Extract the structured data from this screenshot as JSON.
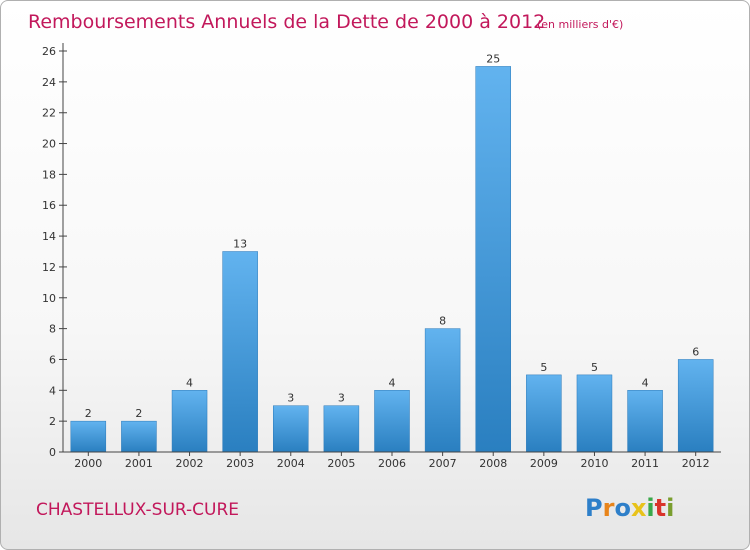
{
  "chart_data": {
    "type": "bar",
    "title": "Remboursements Annuels de la Dette de 2000 à 2012",
    "subtitle": "(en milliers d'€)",
    "categories": [
      "2000",
      "2001",
      "2002",
      "2003",
      "2004",
      "2005",
      "2006",
      "2007",
      "2008",
      "2009",
      "2010",
      "2011",
      "2012"
    ],
    "values": [
      2,
      2,
      4,
      13,
      3,
      3,
      4,
      8,
      25,
      5,
      5,
      4,
      6
    ],
    "xlabel": "",
    "ylabel": "",
    "ylim": [
      0,
      26
    ],
    "yticks": [
      0,
      2,
      4,
      6,
      8,
      10,
      12,
      14,
      16,
      18,
      20,
      22,
      24,
      26
    ],
    "grid": false,
    "legend": "none",
    "bar_color": "#4a9fe0"
  },
  "footer": {
    "commune": "CHASTELLUX-SUR-CURE",
    "brand": {
      "letters": [
        "P",
        "r",
        "o",
        "x",
        "i",
        "t",
        "i"
      ],
      "colors": [
        "#2e7fc9",
        "#e8841a",
        "#2e7fc9",
        "#e8c21a",
        "#3aa84a",
        "#d9342b",
        "#7a9e2e"
      ]
    }
  }
}
